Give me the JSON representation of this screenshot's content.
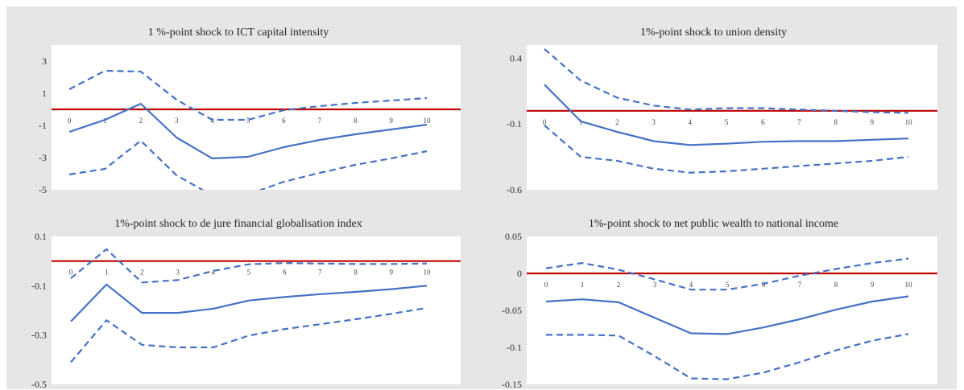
{
  "colors": {
    "series": "#4472c4",
    "zero_line": "#c00000",
    "plot_bg": "#ffffff",
    "frame_bg": "#e6e6e6"
  },
  "chart_data": [
    {
      "type": "line",
      "title": "1 %-point shock to ICT capital intensity",
      "x": [
        0,
        1,
        2,
        3,
        4,
        5,
        6,
        7,
        8,
        9,
        10
      ],
      "ylim": [
        -5,
        4
      ],
      "yticks": [
        3,
        1,
        -1,
        -3,
        -5
      ],
      "yticklabels": [
        "3",
        "1",
        "-1",
        "-3",
        "-5"
      ],
      "legend": "none",
      "grid": false,
      "series": [
        {
          "role": "estimate",
          "style": "solid",
          "values": [
            -1.4,
            -0.65,
            0.35,
            -1.75,
            -3.05,
            -2.95,
            -2.35,
            -1.9,
            -1.55,
            -1.25,
            -0.95
          ]
        },
        {
          "role": "upper",
          "style": "dashed",
          "values": [
            1.25,
            2.4,
            2.35,
            0.6,
            -0.65,
            -0.65,
            -0.05,
            0.2,
            0.4,
            0.55,
            0.7
          ]
        },
        {
          "role": "lower",
          "style": "dashed",
          "values": [
            -4.05,
            -3.7,
            -1.95,
            -4.1,
            -5.35,
            -5.3,
            -4.5,
            -3.95,
            -3.45,
            -3.05,
            -2.6
          ]
        }
      ]
    },
    {
      "type": "line",
      "title": "1%-point shock to union density",
      "x": [
        0,
        1,
        2,
        3,
        4,
        5,
        6,
        7,
        8,
        9,
        10
      ],
      "ylim": [
        -0.6,
        0.5
      ],
      "yticks": [
        0.4,
        -0.1,
        -0.6
      ],
      "yticklabels": [
        "0.4",
        "-0.1",
        "-0.6"
      ],
      "legend": "none",
      "grid": false,
      "series": [
        {
          "role": "estimate",
          "style": "solid",
          "values": [
            0.2,
            -0.08,
            -0.16,
            -0.23,
            -0.26,
            -0.25,
            -0.235,
            -0.23,
            -0.23,
            -0.22,
            -0.21
          ]
        },
        {
          "role": "upper",
          "style": "dashed",
          "values": [
            0.47,
            0.23,
            0.1,
            0.04,
            0.01,
            0.02,
            0.02,
            0.01,
            0.0,
            -0.01,
            -0.015
          ]
        },
        {
          "role": "lower",
          "style": "dashed",
          "values": [
            -0.11,
            -0.35,
            -0.38,
            -0.44,
            -0.47,
            -0.46,
            -0.44,
            -0.42,
            -0.4,
            -0.38,
            -0.35
          ]
        }
      ]
    },
    {
      "type": "line",
      "title": "1%-point shock to de jure financial globalisation index",
      "x": [
        0,
        1,
        2,
        3,
        4,
        5,
        6,
        7,
        8,
        9,
        10
      ],
      "ylim": [
        -0.5,
        0.1
      ],
      "yticks": [
        0.1,
        -0.1,
        -0.3,
        -0.5
      ],
      "yticklabels": [
        "0.1",
        "-0.1",
        "-0.3",
        "-0.5"
      ],
      "legend": "none",
      "grid": false,
      "series": [
        {
          "role": "estimate",
          "style": "solid",
          "values": [
            -0.245,
            -0.095,
            -0.21,
            -0.21,
            -0.193,
            -0.16,
            -0.146,
            -0.134,
            -0.125,
            -0.114,
            -0.1
          ]
        },
        {
          "role": "upper",
          "style": "dashed",
          "values": [
            -0.07,
            0.048,
            -0.087,
            -0.077,
            -0.04,
            -0.013,
            -0.008,
            -0.01,
            -0.012,
            -0.012,
            -0.01
          ]
        },
        {
          "role": "lower",
          "style": "dashed",
          "values": [
            -0.41,
            -0.24,
            -0.34,
            -0.35,
            -0.35,
            -0.302,
            -0.276,
            -0.256,
            -0.236,
            -0.214,
            -0.19
          ]
        }
      ]
    },
    {
      "type": "line",
      "title": "1%-point shock to net public wealth to national income",
      "x": [
        0,
        1,
        2,
        3,
        4,
        5,
        6,
        7,
        8,
        9,
        10
      ],
      "ylim": [
        -0.15,
        0.05
      ],
      "yticks": [
        0.05,
        0,
        -0.05,
        -0.1,
        -0.15
      ],
      "yticklabels": [
        "0.05",
        "0",
        "-0.05",
        "-0.1",
        "-0.15"
      ],
      "legend": "none",
      "grid": false,
      "series": [
        {
          "role": "estimate",
          "style": "solid",
          "values": [
            -0.038,
            -0.035,
            -0.039,
            -0.06,
            -0.081,
            -0.082,
            -0.073,
            -0.062,
            -0.049,
            -0.038,
            -0.031
          ]
        },
        {
          "role": "upper",
          "style": "dashed",
          "values": [
            0.007,
            0.014,
            0.005,
            -0.008,
            -0.022,
            -0.022,
            -0.014,
            -0.003,
            0.006,
            0.014,
            0.02
          ]
        },
        {
          "role": "lower",
          "style": "dashed",
          "values": [
            -0.083,
            -0.083,
            -0.084,
            -0.112,
            -0.142,
            -0.143,
            -0.134,
            -0.12,
            -0.104,
            -0.091,
            -0.082
          ]
        }
      ]
    }
  ]
}
